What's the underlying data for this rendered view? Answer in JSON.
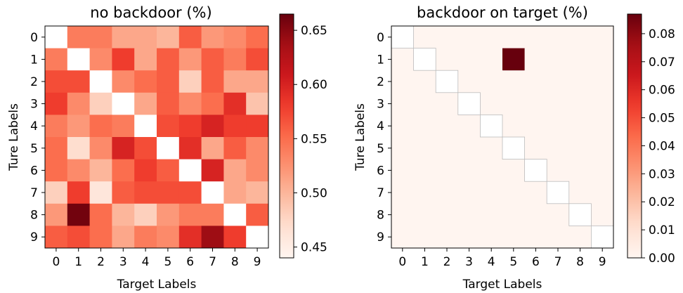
{
  "chart_data": [
    {
      "type": "heatmap",
      "title": "no backdoor (%)",
      "xlabel": "Target Labels",
      "ylabel": "Ture Labels",
      "x_ticks": [
        "0",
        "1",
        "2",
        "3",
        "4",
        "5",
        "6",
        "7",
        "8",
        "9"
      ],
      "y_ticks": [
        "0",
        "1",
        "2",
        "3",
        "4",
        "5",
        "6",
        "7",
        "8",
        "9"
      ],
      "colormap": "Reds",
      "colorbar": {
        "vmin": 0.44,
        "vmax": 0.665,
        "ticks": [
          "0.45",
          "0.50",
          "0.55",
          "0.60",
          "0.65"
        ],
        "tick_values": [
          0.45,
          0.5,
          0.55,
          0.6,
          0.65
        ]
      },
      "diagonal_empty": true,
      "values": [
        [
          null,
          0.54,
          0.54,
          0.51,
          0.51,
          0.5,
          0.56,
          0.52,
          0.53,
          0.55
        ],
        [
          0.54,
          null,
          0.53,
          0.58,
          0.51,
          0.56,
          0.52,
          0.56,
          0.54,
          0.57
        ],
        [
          0.57,
          0.57,
          null,
          0.53,
          0.55,
          0.56,
          0.48,
          0.56,
          0.51,
          0.51
        ],
        [
          0.58,
          0.53,
          0.48,
          null,
          0.51,
          0.56,
          0.53,
          0.55,
          0.59,
          0.49
        ],
        [
          0.54,
          0.52,
          0.55,
          0.54,
          null,
          0.57,
          0.58,
          0.6,
          0.58,
          0.58
        ],
        [
          0.55,
          0.47,
          0.53,
          0.6,
          0.57,
          null,
          0.59,
          0.51,
          0.56,
          0.53
        ],
        [
          0.55,
          0.53,
          0.5,
          0.55,
          0.58,
          0.56,
          null,
          0.6,
          0.51,
          0.53
        ],
        [
          0.48,
          0.58,
          0.46,
          0.56,
          0.57,
          0.57,
          0.57,
          null,
          0.51,
          0.5
        ],
        [
          0.52,
          0.66,
          0.55,
          0.5,
          0.48,
          0.52,
          0.54,
          0.54,
          null,
          0.56
        ],
        [
          0.56,
          0.57,
          0.55,
          0.51,
          0.54,
          0.53,
          0.59,
          0.64,
          0.58,
          null
        ]
      ]
    },
    {
      "type": "heatmap",
      "title": "backdoor on target (%)",
      "xlabel": "Target Labels",
      "ylabel": "Ture Labels",
      "x_ticks": [
        "0",
        "1",
        "2",
        "3",
        "4",
        "5",
        "6",
        "7",
        "8",
        "9"
      ],
      "y_ticks": [
        "0",
        "1",
        "2",
        "3",
        "4",
        "5",
        "6",
        "7",
        "8",
        "9"
      ],
      "colormap": "Reds",
      "colorbar": {
        "vmin": 0.0,
        "vmax": 0.087,
        "ticks": [
          "0.00",
          "0.01",
          "0.02",
          "0.03",
          "0.04",
          "0.05",
          "0.06",
          "0.07",
          "0.08"
        ],
        "tick_values": [
          0.0,
          0.01,
          0.02,
          0.03,
          0.04,
          0.05,
          0.06,
          0.07,
          0.08
        ]
      },
      "diagonal_empty": true,
      "values": [
        [
          null,
          0,
          0,
          0,
          0,
          0,
          0,
          0,
          0,
          0
        ],
        [
          0,
          null,
          0,
          0,
          0,
          0.087,
          0,
          0,
          0,
          0
        ],
        [
          0,
          0,
          null,
          0,
          0,
          0,
          0,
          0,
          0,
          0
        ],
        [
          0,
          0,
          0,
          null,
          0,
          0,
          0,
          0,
          0,
          0
        ],
        [
          0,
          0,
          0,
          0,
          null,
          0,
          0,
          0,
          0,
          0
        ],
        [
          0,
          0,
          0,
          0,
          0,
          null,
          0,
          0,
          0,
          0
        ],
        [
          0,
          0,
          0,
          0,
          0,
          0,
          null,
          0,
          0,
          0
        ],
        [
          0,
          0,
          0,
          0,
          0,
          0,
          0,
          null,
          0,
          0
        ],
        [
          0,
          0,
          0,
          0,
          0,
          0,
          0,
          0,
          null,
          0
        ],
        [
          0,
          0,
          0,
          0,
          0,
          0,
          0,
          0,
          0,
          null
        ]
      ]
    }
  ]
}
